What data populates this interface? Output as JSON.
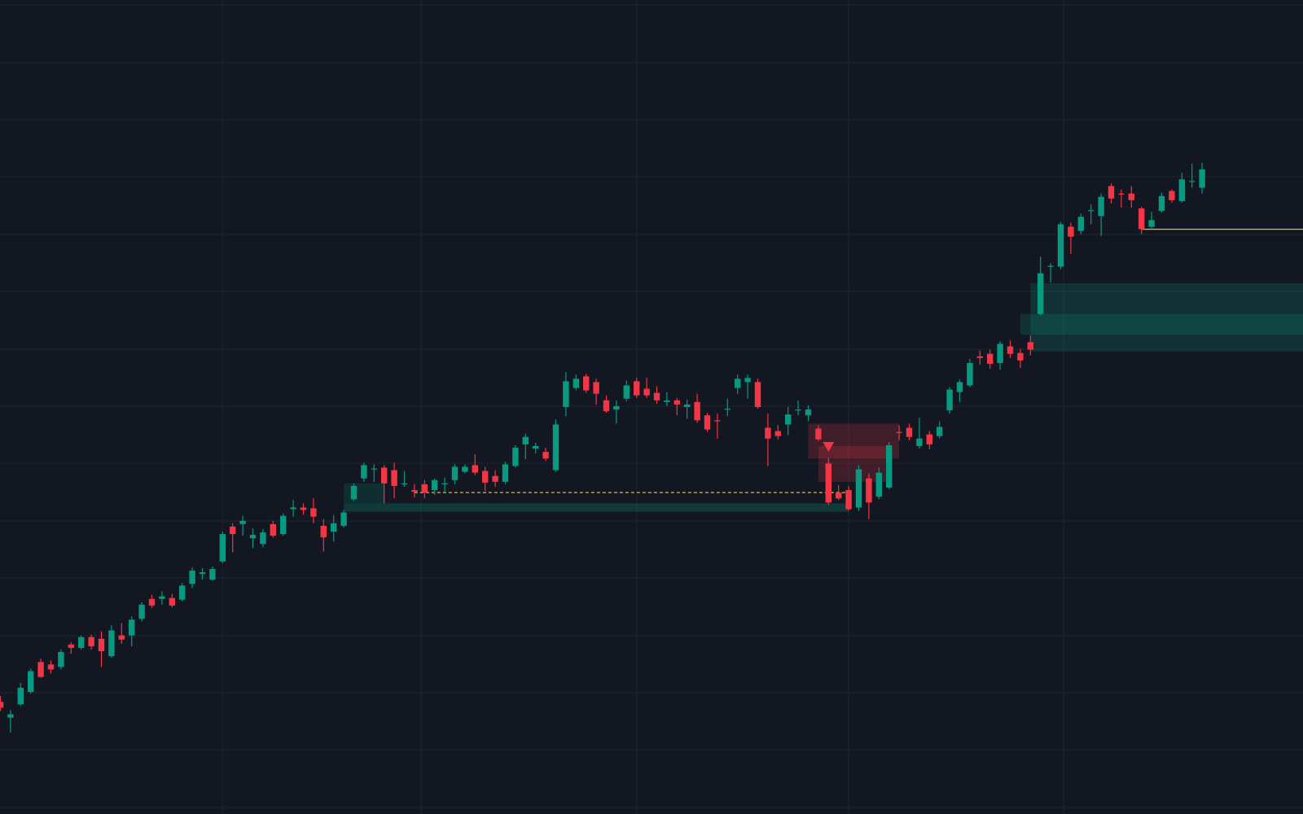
{
  "chart_data": {
    "type": "candlestick",
    "up_color": "#089981",
    "down_color": "#f23645",
    "ylim": [
      0,
      980
    ],
    "open": [
      135,
      116,
      132,
      147,
      183,
      180,
      177,
      204,
      200,
      213,
      211,
      190,
      215,
      215,
      235,
      259,
      259,
      260,
      258,
      277,
      289,
      282,
      304,
      346,
      349,
      332,
      325,
      349,
      337,
      367,
      369,
      368,
      347,
      340,
      347,
      379,
      404,
      415,
      417,
      414,
      397,
      390,
      397,
      390,
      397,
      402,
      412,
      420,
      413,
      407,
      400,
      419,
      445,
      440,
      436,
      414,
      490,
      513,
      527,
      520,
      498,
      487,
      500,
      521,
      512,
      507,
      496,
      498,
      490,
      496,
      480,
      474,
      487,
      513,
      520,
      520,
      465,
      461,
      469,
      486,
      480,
      464,
      422,
      387,
      390,
      369,
      404,
      382,
      393,
      460,
      465,
      443,
      457,
      455,
      486,
      508,
      516,
      551,
      554,
      543,
      563,
      555,
      568,
      602,
      659,
      659,
      707,
      702,
      726,
      720,
      756,
      747,
      747,
      729,
      707,
      726,
      750,
      738,
      761,
      754
    ],
    "high": [
      142,
      125,
      158,
      175,
      187,
      185,
      198,
      207,
      215,
      216,
      220,
      227,
      230,
      238,
      255,
      264,
      268,
      265,
      278,
      297,
      296,
      298,
      340,
      350,
      359,
      344,
      343,
      353,
      362,
      378,
      374,
      380,
      355,
      360,
      366,
      398,
      423,
      421,
      420,
      423,
      413,
      397,
      402,
      404,
      405,
      421,
      421,
      433,
      418,
      414,
      424,
      444,
      458,
      447,
      441,
      475,
      532,
      529,
      530,
      524,
      504,
      498,
      522,
      525,
      525,
      515,
      508,
      501,
      499,
      506,
      483,
      482,
      500,
      529,
      529,
      524,
      482,
      468,
      490,
      498,
      492,
      468,
      429,
      396,
      395,
      420,
      410,
      417,
      448,
      468,
      470,
      477,
      461,
      473,
      514,
      523,
      548,
      558,
      559,
      569,
      570,
      560,
      576,
      671,
      663,
      713,
      712,
      723,
      734,
      747,
      759,
      752,
      756,
      731,
      725,
      748,
      752,
      772,
      783,
      784
    ],
    "low": [
      124,
      98,
      130,
      145,
      164,
      169,
      174,
      193,
      198,
      198,
      177,
      188,
      205,
      202,
      232,
      248,
      252,
      249,
      256,
      272,
      282,
      281,
      302,
      315,
      335,
      320,
      321,
      333,
      335,
      358,
      360,
      350,
      316,
      328,
      345,
      377,
      400,
      400,
      374,
      380,
      394,
      381,
      380,
      384,
      387,
      397,
      410,
      408,
      389,
      394,
      397,
      417,
      427,
      434,
      425,
      412,
      479,
      510,
      507,
      493,
      483,
      470,
      497,
      501,
      501,
      494,
      491,
      480,
      476,
      471,
      460,
      452,
      479,
      506,
      500,
      488,
      419,
      451,
      456,
      480,
      473,
      449,
      372,
      378,
      365,
      365,
      355,
      379,
      391,
      450,
      450,
      440,
      439,
      452,
      482,
      496,
      514,
      541,
      536,
      535,
      549,
      537,
      552,
      600,
      640,
      656,
      674,
      698,
      710,
      696,
      735,
      730,
      730,
      698,
      704,
      724,
      736,
      736,
      754,
      747
    ],
    "close": [
      128,
      120,
      152,
      172,
      165,
      174,
      195,
      200,
      213,
      202,
      196,
      221,
      210,
      234,
      252,
      251,
      262,
      251,
      275,
      293,
      291,
      295,
      337,
      337,
      353,
      336,
      339,
      335,
      359,
      369,
      366,
      358,
      333,
      350,
      363,
      395,
      420,
      416,
      398,
      395,
      398,
      388,
      387,
      402,
      398,
      418,
      418,
      411,
      399,
      400,
      421,
      441,
      454,
      443,
      428,
      469,
      521,
      524,
      510,
      506,
      485,
      491,
      516,
      504,
      504,
      498,
      498,
      493,
      493,
      474,
      463,
      473,
      488,
      524,
      525,
      490,
      452,
      455,
      481,
      487,
      487,
      451,
      375,
      380,
      367,
      415,
      375,
      411,
      444,
      459,
      454,
      452,
      445,
      466,
      511,
      520,
      543,
      549,
      542,
      566,
      554,
      546,
      559,
      651,
      660,
      710,
      695,
      719,
      727,
      743,
      741,
      746,
      739,
      704,
      715,
      744,
      739,
      764,
      762,
      776
    ],
    "zones": [
      {
        "start": 34,
        "end": 38,
        "top": 398,
        "bottom": 374,
        "color": "rgba(8,153,129,0.17)"
      },
      {
        "start": 34,
        "end": 84,
        "top": 374,
        "bottom": 364,
        "color": "rgba(8,153,129,0.26)"
      },
      {
        "start": 80,
        "end": 89,
        "top": 470,
        "bottom": 428,
        "color": "rgba(242,54,69,0.2)"
      },
      {
        "start": 81,
        "end": 88,
        "top": 443,
        "bottom": 400,
        "color": "rgba(242,54,69,0.2)"
      },
      {
        "start": 102,
        "end": 129,
        "top": 639,
        "bottom": 557,
        "color": "rgba(8,153,129,0.2)"
      },
      {
        "start": 101,
        "end": 129,
        "top": 602,
        "bottom": 577,
        "color": "rgba(8,153,129,0.2)"
      }
    ],
    "lines": [
      {
        "start": 41,
        "end": 84,
        "price": 387,
        "color": "#e0c030",
        "dashed": true
      },
      {
        "start": 113,
        "end": 129,
        "price": 704,
        "color": "#e0c030",
        "dashed": false
      }
    ],
    "markers": [
      {
        "index": 82,
        "price": 442,
        "color": "#f23645"
      }
    ]
  }
}
